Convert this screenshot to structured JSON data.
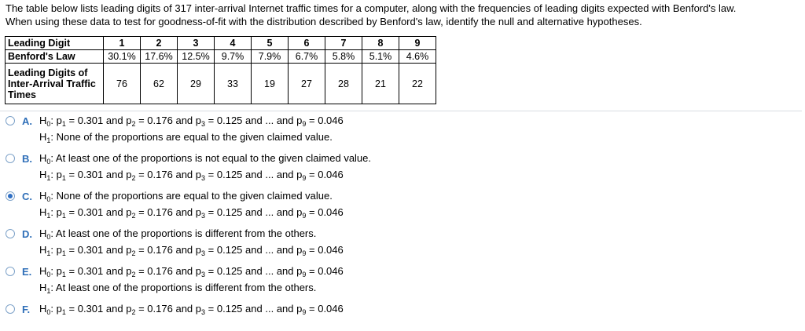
{
  "question": [
    "The table below lists leading digits of 317 inter-arrival Internet traffic times for a computer, along with the frequencies of leading digits expected with Benford's law.",
    "When using these data to test for goodness-of-fit with the distribution described by Benford's law, identify the null and alternative hypotheses."
  ],
  "table": {
    "rows": [
      {
        "label": "Leading Digit",
        "values": [
          "1",
          "2",
          "3",
          "4",
          "5",
          "6",
          "7",
          "8",
          "9"
        ]
      },
      {
        "label": "Benford's Law",
        "values": [
          "30.1%",
          "17.6%",
          "12.5%",
          "9.7%",
          "7.9%",
          "6.7%",
          "5.8%",
          "5.1%",
          "4.6%"
        ]
      },
      {
        "label": "Leading Digits of Inter-Arrival Traffic Times",
        "values": [
          "76",
          "62",
          "29",
          "33",
          "19",
          "27",
          "28",
          "21",
          "22"
        ]
      }
    ]
  },
  "eq": {
    "and": "and",
    "ellipsis": "... and",
    "p": "p",
    "subs": [
      "1",
      "2",
      "3",
      "9"
    ],
    "vals": [
      "0.301",
      "0.176",
      "0.125",
      "0.046"
    ]
  },
  "texts": {
    "none": "None of the proportions are equal to the given claimed value.",
    "notequal": "At least one of the proportions is not equal to the given claimed value.",
    "different": "At least one of the proportions is different from the others."
  },
  "options": [
    {
      "letter": "A.",
      "h0": "eq",
      "h1": "none",
      "selected": false
    },
    {
      "letter": "B.",
      "h0": "notequal",
      "h1": "eq",
      "selected": false
    },
    {
      "letter": "C.",
      "h0": "none",
      "h1": "eq",
      "selected": true
    },
    {
      "letter": "D.",
      "h0": "different",
      "h1": "eq",
      "selected": false
    },
    {
      "letter": "E.",
      "h0": "eq",
      "h1": "different",
      "selected": false
    },
    {
      "letter": "F.",
      "h0": "eq",
      "h1": null,
      "selected": false
    }
  ]
}
